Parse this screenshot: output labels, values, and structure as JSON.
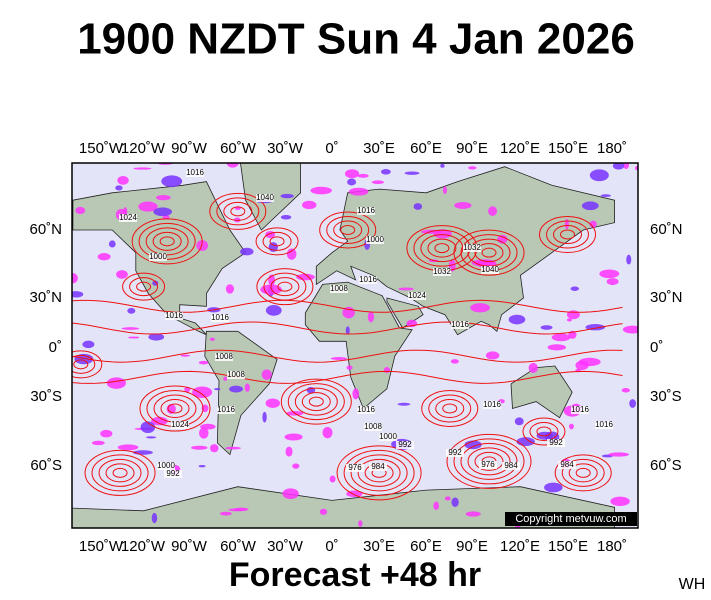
{
  "header": {
    "title": "1900 NZDT Sun 4 Jan 2026"
  },
  "map": {
    "longitude_labels": [
      "150˚W",
      "120˚W",
      "90˚W",
      "60˚W",
      "30˚W",
      "0˚",
      "30˚E",
      "60˚E",
      "90˚E",
      "120˚E",
      "150˚E",
      "180˚"
    ],
    "latitude_labels": [
      "60˚N",
      "30˚N",
      "0˚",
      "30˚S",
      "60˚S"
    ],
    "isobar_labels": [
      "1024",
      "1000",
      "1016",
      "1040",
      "1008",
      "1016",
      "1016",
      "1000",
      "1024",
      "1032",
      "1040",
      "1032",
      "1016",
      "1016",
      "1008",
      "1008",
      "1016",
      "1024",
      "1016",
      "1008",
      "1000",
      "992",
      "1000",
      "992",
      "976",
      "984",
      "992",
      "976",
      "984",
      "992",
      "984",
      "1016",
      "1016",
      "1016",
      "1016"
    ],
    "copyright": "Copyright metvuw.com"
  },
  "footer": {
    "forecast": "Forecast +48 hr",
    "code": "WH"
  }
}
